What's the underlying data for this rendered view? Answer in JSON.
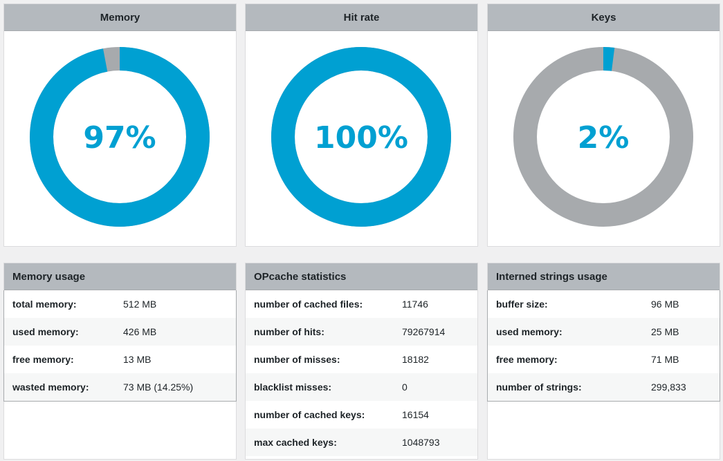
{
  "colors": {
    "accent": "#00a0d2",
    "track": "#a7aaad",
    "header": "#b4b9be"
  },
  "gauges": [
    {
      "title": "Memory",
      "label": "97%",
      "fraction": 0.97
    },
    {
      "title": "Hit rate",
      "label": "100%",
      "fraction": 1.0
    },
    {
      "title": "Keys",
      "label": "2%",
      "fraction": 0.02
    }
  ],
  "memory_usage": {
    "title": "Memory usage",
    "rows": [
      {
        "key": "total memory:",
        "value": "512 MB"
      },
      {
        "key": "used memory:",
        "value": "426 MB"
      },
      {
        "key": "free memory:",
        "value": "13 MB"
      },
      {
        "key": "wasted memory:",
        "value": "73 MB (14.25%)"
      }
    ]
  },
  "opcache_statistics": {
    "title": "OPcache statistics",
    "rows": [
      {
        "key": "number of cached files:",
        "value": "11746"
      },
      {
        "key": "number of hits:",
        "value": "79267914"
      },
      {
        "key": "number of misses:",
        "value": "18182"
      },
      {
        "key": "blacklist misses:",
        "value": "0"
      },
      {
        "key": "number of cached keys:",
        "value": "16154"
      },
      {
        "key": "max cached keys:",
        "value": "1048793"
      }
    ]
  },
  "interned_strings": {
    "title": "Interned strings usage",
    "rows": [
      {
        "key": "buffer size:",
        "value": "96 MB"
      },
      {
        "key": "used memory:",
        "value": "25 MB"
      },
      {
        "key": "free memory:",
        "value": "71 MB"
      },
      {
        "key": "number of strings:",
        "value": "299,833"
      }
    ]
  }
}
